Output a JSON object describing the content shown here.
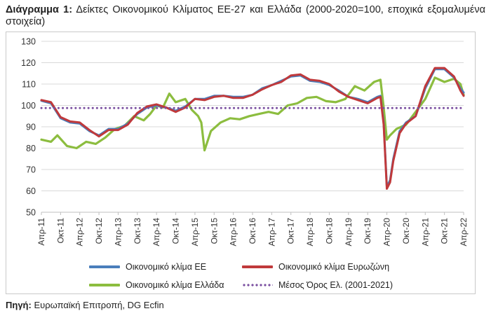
{
  "title_bold": "Διάγραμμα 1:",
  "title_text": "Δείκτες Οικονομικού Κλίματος ΕΕ-27 και Ελλάδα (2000-2020=100, εποχικά εξομαλυμένα στοιχεία)",
  "source_bold": "Πηγή:",
  "source_text": "Ευρωπαϊκή Επιτροπή, DG Ecfin",
  "colors": {
    "eu": "#4a7ebb",
    "ez": "#c0393b",
    "gr": "#8cbd3f",
    "avg": "#7a4fa0",
    "grid": "#d9d9d9"
  },
  "chart_data": {
    "type": "line",
    "ylim": [
      50,
      130
    ],
    "yticks": [
      50,
      60,
      70,
      80,
      90,
      100,
      110,
      120,
      130
    ],
    "x_range": [
      "2011-04",
      "2022-04"
    ],
    "x_tick_labels": [
      "Απρ-11",
      "Οκτ-11",
      "Απρ-12",
      "Οκτ-12",
      "Απρ-13",
      "Οκτ-13",
      "Απρ-14",
      "Οκτ-14",
      "Απρ-15",
      "Οκτ-15",
      "Απρ-16",
      "Οκτ-16",
      "Απρ-17",
      "Οκτ-17",
      "Απρ-18",
      "Οκτ-18",
      "Απρ-19",
      "Οκτ-19",
      "Απρ-20",
      "Οκτ-20",
      "Απρ-21",
      "Οκτ-21",
      "Απρ-22"
    ],
    "grid": true,
    "legend_position": "bottom",
    "series": [
      {
        "name": "Οικονομικό κλίμα ΕΕ",
        "key": "eu",
        "points": [
          [
            "2011-04",
            102.2
          ],
          [
            "2011-07",
            101
          ],
          [
            "2011-10",
            94
          ],
          [
            "2012-01",
            92
          ],
          [
            "2012-04",
            91.5
          ],
          [
            "2012-07",
            88
          ],
          [
            "2012-10",
            86
          ],
          [
            "2013-01",
            89
          ],
          [
            "2013-04",
            89
          ],
          [
            "2013-07",
            91.5
          ],
          [
            "2013-10",
            96
          ],
          [
            "2014-01",
            99
          ],
          [
            "2014-04",
            100
          ],
          [
            "2014-07",
            99
          ],
          [
            "2014-10",
            97.5
          ],
          [
            "2015-01",
            99.5
          ],
          [
            "2015-04",
            103
          ],
          [
            "2015-07",
            103
          ],
          [
            "2015-10",
            104.5
          ],
          [
            "2016-01",
            104.5
          ],
          [
            "2016-04",
            104
          ],
          [
            "2016-07",
            104
          ],
          [
            "2016-10",
            105
          ],
          [
            "2017-01",
            108
          ],
          [
            "2017-04",
            109.5
          ],
          [
            "2017-07",
            111.5
          ],
          [
            "2017-10",
            113.5
          ],
          [
            "2018-01",
            114
          ],
          [
            "2018-04",
            111.5
          ],
          [
            "2018-07",
            111
          ],
          [
            "2018-10",
            109.5
          ],
          [
            "2019-01",
            107
          ],
          [
            "2019-04",
            104
          ],
          [
            "2019-07",
            103
          ],
          [
            "2019-10",
            101.5
          ],
          [
            "2020-01",
            104
          ],
          [
            "2020-02",
            104.5
          ],
          [
            "2020-03",
            92
          ],
          [
            "2020-04",
            62
          ],
          [
            "2020-05",
            65
          ],
          [
            "2020-06",
            75
          ],
          [
            "2020-08",
            88
          ],
          [
            "2020-10",
            92
          ],
          [
            "2021-01",
            95
          ],
          [
            "2021-04",
            108
          ],
          [
            "2021-07",
            117
          ],
          [
            "2021-10",
            117
          ],
          [
            "2022-01",
            113
          ],
          [
            "2022-03",
            108
          ],
          [
            "2022-04",
            106
          ]
        ]
      },
      {
        "name": "Οικονομικό κλίμα Ευρωζώνη",
        "key": "ez",
        "points": [
          [
            "2011-04",
            102.5
          ],
          [
            "2011-07",
            101.5
          ],
          [
            "2011-10",
            94.5
          ],
          [
            "2012-01",
            92.5
          ],
          [
            "2012-04",
            92
          ],
          [
            "2012-07",
            88.5
          ],
          [
            "2012-10",
            85.5
          ],
          [
            "2013-01",
            88.5
          ],
          [
            "2013-04",
            88.5
          ],
          [
            "2013-07",
            91
          ],
          [
            "2013-10",
            96.5
          ],
          [
            "2014-01",
            99.5
          ],
          [
            "2014-04",
            100.5
          ],
          [
            "2014-07",
            99
          ],
          [
            "2014-10",
            97
          ],
          [
            "2015-01",
            99
          ],
          [
            "2015-04",
            103
          ],
          [
            "2015-07",
            102.5
          ],
          [
            "2015-10",
            104
          ],
          [
            "2016-01",
            104.5
          ],
          [
            "2016-04",
            103.5
          ],
          [
            "2016-07",
            103.5
          ],
          [
            "2016-10",
            105
          ],
          [
            "2017-01",
            107.5
          ],
          [
            "2017-04",
            109.5
          ],
          [
            "2017-07",
            111
          ],
          [
            "2017-10",
            114
          ],
          [
            "2018-01",
            114.5
          ],
          [
            "2018-04",
            112
          ],
          [
            "2018-07",
            111.5
          ],
          [
            "2018-10",
            110
          ],
          [
            "2019-01",
            106.5
          ],
          [
            "2019-04",
            104
          ],
          [
            "2019-07",
            102.5
          ],
          [
            "2019-10",
            101
          ],
          [
            "2020-01",
            103.5
          ],
          [
            "2020-02",
            104
          ],
          [
            "2020-03",
            91
          ],
          [
            "2020-04",
            61
          ],
          [
            "2020-05",
            64
          ],
          [
            "2020-06",
            74
          ],
          [
            "2020-08",
            87
          ],
          [
            "2020-10",
            91.5
          ],
          [
            "2021-01",
            95
          ],
          [
            "2021-04",
            109
          ],
          [
            "2021-07",
            117.5
          ],
          [
            "2021-10",
            117.5
          ],
          [
            "2022-01",
            113.5
          ],
          [
            "2022-03",
            107
          ],
          [
            "2022-04",
            104.5
          ]
        ]
      },
      {
        "name": "Οικονομικό κλίμα Ελλάδα",
        "key": "gr",
        "points": [
          [
            "2011-04",
            84
          ],
          [
            "2011-07",
            83
          ],
          [
            "2011-09",
            86
          ],
          [
            "2011-12",
            81
          ],
          [
            "2012-03",
            80
          ],
          [
            "2012-06",
            83
          ],
          [
            "2012-09",
            82
          ],
          [
            "2012-12",
            85
          ],
          [
            "2013-03",
            89
          ],
          [
            "2013-06",
            90.5
          ],
          [
            "2013-09",
            95
          ],
          [
            "2013-12",
            93
          ],
          [
            "2014-02",
            96
          ],
          [
            "2014-04",
            100
          ],
          [
            "2014-06",
            99
          ],
          [
            "2014-08",
            105.5
          ],
          [
            "2014-10",
            101.5
          ],
          [
            "2015-01",
            103
          ],
          [
            "2015-03",
            98
          ],
          [
            "2015-05",
            95
          ],
          [
            "2015-06",
            92
          ],
          [
            "2015-07",
            79
          ],
          [
            "2015-09",
            88
          ],
          [
            "2015-12",
            92
          ],
          [
            "2016-03",
            94
          ],
          [
            "2016-06",
            93.5
          ],
          [
            "2016-09",
            95
          ],
          [
            "2016-12",
            96
          ],
          [
            "2017-03",
            97
          ],
          [
            "2017-06",
            96
          ],
          [
            "2017-09",
            100
          ],
          [
            "2017-12",
            101
          ],
          [
            "2018-03",
            103.5
          ],
          [
            "2018-06",
            104
          ],
          [
            "2018-09",
            102
          ],
          [
            "2018-12",
            101.5
          ],
          [
            "2019-03",
            103
          ],
          [
            "2019-06",
            109
          ],
          [
            "2019-09",
            107
          ],
          [
            "2019-12",
            111
          ],
          [
            "2020-02",
            112
          ],
          [
            "2020-03",
            99
          ],
          [
            "2020-04",
            84
          ],
          [
            "2020-05",
            86
          ],
          [
            "2020-07",
            89
          ],
          [
            "2020-10",
            91
          ],
          [
            "2021-01",
            97
          ],
          [
            "2021-04",
            103
          ],
          [
            "2021-07",
            113
          ],
          [
            "2021-10",
            111
          ],
          [
            "2022-01",
            112.5
          ],
          [
            "2022-03",
            110
          ],
          [
            "2022-04",
            105
          ]
        ]
      },
      {
        "name": "Μέσος Όρος Ελ. (2001-2021)",
        "key": "avg",
        "style": "dotted",
        "points": [
          [
            "2011-04",
            98.8
          ],
          [
            "2022-04",
            98.8
          ]
        ]
      }
    ]
  }
}
